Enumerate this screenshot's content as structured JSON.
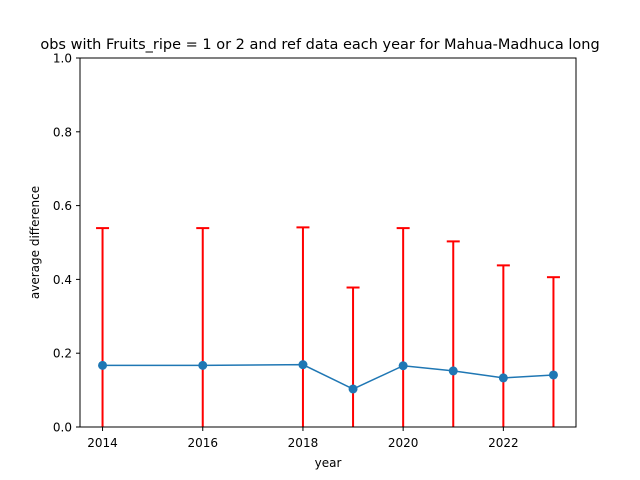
{
  "chart_data": {
    "type": "line",
    "title": "obs with Fruits_ripe = 1 or 2 and ref data each year for Mahua-Madhuca long",
    "xlabel": "year",
    "ylabel": "average difference",
    "x": [
      2014,
      2016,
      2018,
      2019,
      2020,
      2021,
      2022,
      2023
    ],
    "series": [
      {
        "values": [
          0.167,
          0.167,
          0.169,
          0.103,
          0.166,
          0.152,
          0.133,
          0.141
        ],
        "error_upper": [
          0.539,
          0.539,
          0.541,
          0.378,
          0.539,
          0.503,
          0.438,
          0.406
        ],
        "error_lower": [
          0.0,
          0.0,
          0.0,
          0.0,
          0.0,
          0.0,
          0.0,
          0.0
        ],
        "line_color": "#1f77b4",
        "error_color": "#ff0000"
      }
    ],
    "xlim": [
      2013.55,
      2023.45
    ],
    "ylim": [
      0.0,
      1.0
    ],
    "xticks": [
      "2014",
      "2016",
      "2018",
      "2020",
      "2022"
    ],
    "yticks": [
      "0.0",
      "0.2",
      "0.4",
      "0.6",
      "0.8",
      "1.0"
    ],
    "grid": false,
    "legend": false
  }
}
